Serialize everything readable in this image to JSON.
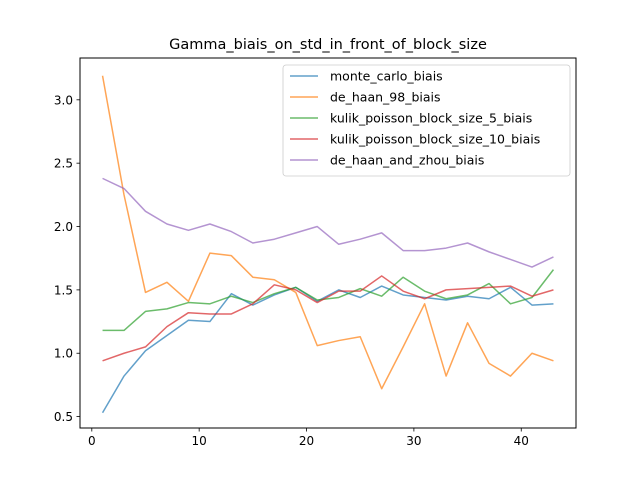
{
  "chart_data": {
    "type": "line",
    "title": "Gamma_biais_on_std_in_front_of_block_size",
    "xlabel": "",
    "ylabel": "",
    "xlim": [
      -1.1,
      45.1
    ],
    "ylim": [
      0.41,
      3.33
    ],
    "xticks": [
      0,
      10,
      20,
      30,
      40
    ],
    "yticks": [
      0.5,
      1.0,
      1.5,
      2.0,
      2.5,
      3.0
    ],
    "xtick_labels": [
      "0",
      "10",
      "20",
      "30",
      "40"
    ],
    "ytick_labels": [
      "0.5",
      "1.0",
      "1.5",
      "2.0",
      "2.5",
      "3.0"
    ],
    "legend_position": "top-right",
    "grid": false,
    "x": [
      1,
      3,
      5,
      7,
      9,
      11,
      13,
      15,
      17,
      19,
      21,
      23,
      25,
      27,
      29,
      31,
      33,
      35,
      37,
      39,
      41,
      43
    ],
    "series": [
      {
        "name": "monte_carlo_biais",
        "color": "#1f77b4",
        "values": [
          0.53,
          0.82,
          1.02,
          1.14,
          1.26,
          1.25,
          1.47,
          1.38,
          1.46,
          1.52,
          1.41,
          1.5,
          1.44,
          1.53,
          1.46,
          1.44,
          1.42,
          1.45,
          1.43,
          1.52,
          1.38,
          1.39
        ]
      },
      {
        "name": "de_haan_98_biais",
        "color": "#ff7f0e",
        "values": [
          3.19,
          2.25,
          1.48,
          1.56,
          1.41,
          1.79,
          1.77,
          1.6,
          1.58,
          1.48,
          1.06,
          1.1,
          1.13,
          0.72,
          1.05,
          1.39,
          0.82,
          1.24,
          0.92,
          0.82,
          1.0,
          0.94
        ]
      },
      {
        "name": "kulik_poisson_block_size_5_biais",
        "color": "#2ca02c",
        "values": [
          1.18,
          1.18,
          1.33,
          1.35,
          1.4,
          1.39,
          1.45,
          1.4,
          1.47,
          1.52,
          1.42,
          1.44,
          1.51,
          1.45,
          1.6,
          1.49,
          1.43,
          1.46,
          1.55,
          1.39,
          1.44,
          1.66
        ]
      },
      {
        "name": "kulik_poisson_block_size_10_biais",
        "color": "#d62728",
        "values": [
          0.94,
          1.0,
          1.05,
          1.21,
          1.32,
          1.31,
          1.31,
          1.39,
          1.54,
          1.5,
          1.4,
          1.49,
          1.49,
          1.61,
          1.49,
          1.43,
          1.5,
          1.51,
          1.52,
          1.53,
          1.45,
          1.5
        ]
      },
      {
        "name": "de_haan_and_zhou_biais",
        "color": "#9467bd",
        "values": [
          2.38,
          2.3,
          2.12,
          2.02,
          1.97,
          2.02,
          1.96,
          1.87,
          1.9,
          1.95,
          2.0,
          1.86,
          1.9,
          1.95,
          1.81,
          1.81,
          1.83,
          1.87,
          1.8,
          1.74,
          1.68,
          1.76
        ]
      }
    ]
  }
}
